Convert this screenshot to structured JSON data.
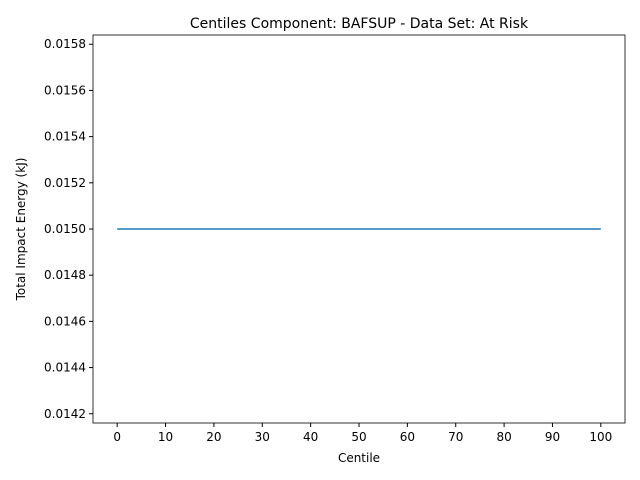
{
  "chart_data": {
    "type": "line",
    "title": "Centiles Component: BAFSUP - Data Set: At Risk",
    "x_label": "Centile",
    "y_label": "Total Impact Energy (kJ)",
    "x": [
      0,
      10,
      20,
      30,
      40,
      50,
      60,
      70,
      80,
      90,
      100
    ],
    "series": [
      {
        "color": "#1f77b4",
        "values": [
          0.015,
          0.015,
          0.015,
          0.015,
          0.015,
          0.015,
          0.015,
          0.015,
          0.015,
          0.015,
          0.015
        ]
      }
    ],
    "xlim": [
      -5,
      105
    ],
    "xticks": [
      0,
      10,
      20,
      30,
      40,
      50,
      60,
      70,
      80,
      90,
      100
    ],
    "ylim": [
      0.01416,
      0.01584
    ],
    "yticks": [
      0.0142,
      0.0144,
      0.0146,
      0.0148,
      {
        "value": 0.015,
        "label": "0.0150"
      },
      0.0152,
      0.0154,
      0.0156,
      0.0158
    ]
  }
}
